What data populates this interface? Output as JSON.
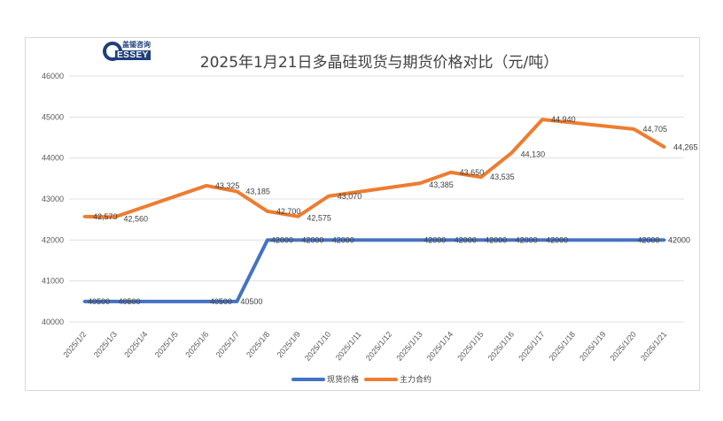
{
  "logo": {
    "cn": "盖锡咨询",
    "en": "ESSEY",
    "g": "G"
  },
  "chart_data": {
    "type": "line",
    "title": "2025年1月21日多晶硅现货与期货价格对比（元/吨）",
    "categories": [
      "2025/1/2",
      "2025/1/3",
      "2025/1/4",
      "2025/1/5",
      "2025/1/6",
      "2025/1/7",
      "2025/1/8",
      "2025/1/9",
      "2025/1/10",
      "2025/1/11",
      "2025/1/12",
      "2025/1/13",
      "2025/1/14",
      "2025/1/15",
      "2025/1/16",
      "2025/1/17",
      "2025/1/18",
      "2025/1/19",
      "2025/1/20",
      "2025/1/21"
    ],
    "ylim": [
      40000,
      46000
    ],
    "yticks": [
      "40000",
      "41000",
      "42000",
      "43000",
      "44000",
      "45000",
      "46000"
    ],
    "grid": true,
    "legend_position": "bottom",
    "series": [
      {
        "name": "现货价格",
        "color": "#4472C4",
        "values": [
          40500,
          40500,
          null,
          null,
          40500,
          40500,
          42000,
          42000,
          42000,
          null,
          null,
          42000,
          42000,
          42000,
          42000,
          42000,
          null,
          null,
          42000,
          42000
        ],
        "labels": [
          "40500",
          "40500",
          null,
          null,
          "40500",
          "40500",
          "42000",
          "42000",
          "42000",
          null,
          null,
          "42000",
          "42000",
          "42000",
          "42000",
          "42000",
          null,
          null,
          "42000",
          "42000"
        ]
      },
      {
        "name": "主力合约",
        "color": "#ED7D31",
        "values": [
          42570,
          42560,
          null,
          null,
          43325,
          43185,
          42700,
          42575,
          43070,
          null,
          null,
          43385,
          43650,
          43535,
          44130,
          44940,
          null,
          null,
          44705,
          44265
        ],
        "labels": [
          "42,570",
          "42,560",
          null,
          null,
          "43,325",
          "43,185",
          "42,700",
          "42,575",
          "43,070",
          null,
          null,
          "43,385",
          "43,650",
          "43,535",
          "44,130",
          "44,940",
          null,
          null,
          "44,705",
          "44,265"
        ]
      }
    ]
  }
}
